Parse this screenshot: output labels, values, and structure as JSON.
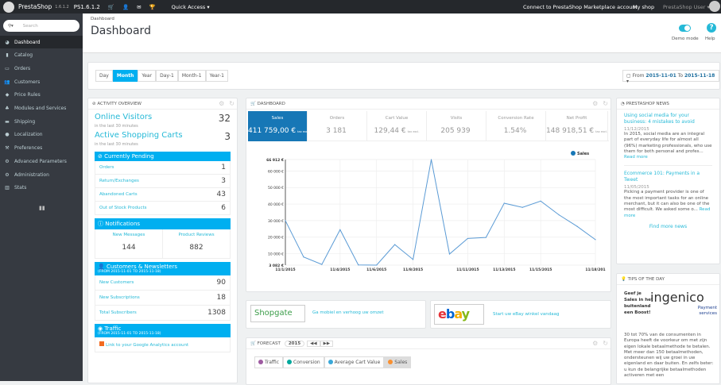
{
  "topbar": {
    "brand": "PrestaShop",
    "version": "1.6.1.2",
    "shop_version": "PS1.6.1.2",
    "quick_access": "Quick Access",
    "connect": "Connect to PrestaShop Marketplace account",
    "my_shop": "My shop",
    "user": "PrestaShop User"
  },
  "sidebar": {
    "search_placeholder": "Search",
    "items": [
      {
        "label": "Dashboard",
        "icon": "dashboard-icon"
      },
      {
        "label": "Catalog",
        "icon": "book-icon"
      },
      {
        "label": "Orders",
        "icon": "credit-card-icon"
      },
      {
        "label": "Customers",
        "icon": "users-icon"
      },
      {
        "label": "Price Rules",
        "icon": "tags-icon"
      },
      {
        "label": "Modules and Services",
        "icon": "puzzle-icon"
      },
      {
        "label": "Shipping",
        "icon": "truck-icon"
      },
      {
        "label": "Localization",
        "icon": "globe-icon"
      },
      {
        "label": "Preferences",
        "icon": "wrench-icon"
      },
      {
        "label": "Advanced Parameters",
        "icon": "cogs-icon"
      },
      {
        "label": "Administration",
        "icon": "cog-icon"
      },
      {
        "label": "Stats",
        "icon": "bar-chart-icon"
      }
    ]
  },
  "header": {
    "breadcrumb": "Dashboard",
    "title": "Dashboard",
    "demo_mode": "Demo mode",
    "help": "Help"
  },
  "toolbar": {
    "periods": [
      "Day",
      "Month",
      "Year",
      "Day-1",
      "Month-1",
      "Year-1"
    ],
    "active": "Month",
    "from_label": "From",
    "from": "2015-11-01",
    "to_label": "To",
    "to": "2015-11-18"
  },
  "activity": {
    "title": "Activity overview",
    "online_visitors": "Online Visitors",
    "online_value": "32",
    "online_sub": "in the last 30 minutes",
    "carts": "Active Shopping Carts",
    "carts_value": "3",
    "carts_sub": "in the last 30 minutes",
    "pending_title": "Currently Pending",
    "pending": [
      {
        "label": "Orders",
        "value": "1"
      },
      {
        "label": "Return/Exchanges",
        "value": "3"
      },
      {
        "label": "Abandoned Carts",
        "value": "43"
      },
      {
        "label": "Out of Stock Products",
        "value": "6"
      }
    ],
    "notif_title": "Notifications",
    "notif": [
      {
        "label": "New Messages",
        "value": "144"
      },
      {
        "label": "Product Reviews",
        "value": "882"
      }
    ],
    "cust_title": "Customers & Newsletters",
    "cust_range": "(FROM 2015-11-01 TO 2015-11-18)",
    "cust": [
      {
        "label": "New Customers",
        "value": "90"
      },
      {
        "label": "New Subscriptions",
        "value": "18"
      },
      {
        "label": "Total Subscribers",
        "value": "1308"
      }
    ],
    "traffic_title": "Traffic",
    "traffic_range": "(FROM 2015-11-01 TO 2015-11-18)",
    "ga_link": "Link to your Google Analytics account"
  },
  "dashboard": {
    "title": "Dashboard",
    "kpis": [
      {
        "label": "Sales",
        "value": "411 759,00 €",
        "suffix": "tax excl."
      },
      {
        "label": "Orders",
        "value": "3 181",
        "suffix": ""
      },
      {
        "label": "Cart Value",
        "value": "129,44 €",
        "suffix": "tax excl."
      },
      {
        "label": "Visits",
        "value": "205 939",
        "suffix": ""
      },
      {
        "label": "Conversion Rate",
        "value": "1.54%",
        "suffix": ""
      },
      {
        "label": "Net Profit",
        "value": "148 918,51 €",
        "suffix": "tax excl."
      }
    ]
  },
  "chart_data": {
    "type": "line",
    "legend": "top-right",
    "series": [
      {
        "name": "Sales",
        "color": "#1777b6",
        "values": [
          30000,
          8000,
          3500,
          24500,
          3200,
          3082,
          15500,
          6500,
          66912,
          9800,
          19200,
          19800,
          40500,
          38000,
          41800,
          33500,
          26500,
          18500
        ]
      }
    ],
    "x": [
      "11/1/2015",
      "11/2/2015",
      "11/3/2015",
      "11/4/2015",
      "11/5/2015",
      "11/6/2015",
      "11/7/2015",
      "11/8/2015",
      "11/9/2015",
      "11/10/2015",
      "11/11/2015",
      "11/12/2015",
      "11/13/2015",
      "11/14/2015",
      "11/15/2015",
      "11/16/2015",
      "11/17/2015",
      "11/18/2015"
    ],
    "xticks": [
      {
        "i": 0,
        "label": "11/1/2015"
      },
      {
        "i": 3,
        "label": "11/4/2015"
      },
      {
        "i": 5,
        "label": "11/6/2015"
      },
      {
        "i": 7,
        "label": "11/8/2015"
      },
      {
        "i": 10,
        "label": "11/11/2015"
      },
      {
        "i": 12,
        "label": "11/13/2015"
      },
      {
        "i": 14,
        "label": "11/15/2015"
      },
      {
        "i": 17,
        "label": "11/18/201"
      }
    ],
    "yticks": [
      {
        "v": 3082,
        "label": "3 082 €"
      },
      {
        "v": 10000,
        "label": "10 000 €"
      },
      {
        "v": 20000,
        "label": "20 000 €"
      },
      {
        "v": 30000,
        "label": "30 000 €"
      },
      {
        "v": 40000,
        "label": "40 000 €"
      },
      {
        "v": 50000,
        "label": "50 000 €"
      },
      {
        "v": 60000,
        "label": "60 000 €"
      },
      {
        "v": 66912,
        "label": "66 912 €"
      }
    ],
    "ylim": [
      3082,
      66912
    ],
    "grid": true
  },
  "ads": [
    {
      "logo": "Shopgate",
      "text": "Ga mobiel en verhoog uw omzet"
    },
    {
      "logo": "ebay",
      "text": "Start uw eBay winkel vandaag"
    }
  ],
  "forecast": {
    "title": "Forecast",
    "year": "2015",
    "tabs": [
      {
        "label": "Traffic",
        "color": "#9e5ba1"
      },
      {
        "label": "Conversion",
        "color": "#00a89c"
      },
      {
        "label": "Average Cart Value",
        "color": "#3aa8d8"
      },
      {
        "label": "Sales",
        "color": "#f99031"
      }
    ],
    "active": "Sales"
  },
  "news": {
    "title": "PrestaShop News",
    "items": [
      {
        "title": "Using social media for your business: 4 mistakes to avoid",
        "date": "11/12/2015",
        "body": "In 2015, social media are an integral part of everyday life for almost all (96%) marketing professionals, who use them for both personal and profes...",
        "more": "Read more"
      },
      {
        "title": "Ecommerce 101: Payments in a Tweet",
        "date": "11/05/2015",
        "body": "Picking a payment provider is one of the most important tasks for an online merchant, but it can also be one of the most difficult. We asked some o...",
        "more": "Read more"
      }
    ],
    "find_more": "Find more news"
  },
  "tips": {
    "title": "Tips of the day",
    "logo": "ingenico",
    "logo_sub": "Payment services",
    "headline": "Geef je Sales in het buitenland een Boost!",
    "body": "30 tot 70% van de consumenten in Europa heeft de voorkeur om met zijn eigen lokale betaalmethode te betalen. Met meer dan 150 betaalmethoden, ondersteunen wij uw groei in uw eigenland en daar buiten. En zelfs beter: u kun de belangrijke betaalmethoden activeren met een"
  }
}
